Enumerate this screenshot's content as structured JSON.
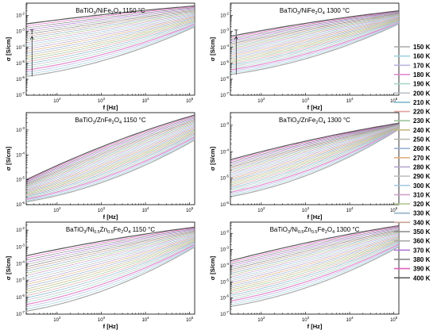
{
  "legend_title": "",
  "legend": [
    "150 K",
    "160 K",
    "170 K",
    "180 K",
    "190 K",
    "200 K",
    "210 K",
    "220 K",
    "230 K",
    "240 K",
    "250 K",
    "260 K",
    "270 K",
    "280 K",
    "290 K",
    "300 K",
    "310 K",
    "320 K",
    "330 K",
    "340 K",
    "350 K",
    "360 K",
    "370 K",
    "380 K",
    "390 K",
    "400 K"
  ],
  "legend_colors": [
    "#a9a9a9",
    "#9ed3e0",
    "#b9b4e0",
    "#e38ad0",
    "#a8d7c4",
    "#b6bec8",
    "#7fb8d0",
    "#e0a3a0",
    "#9ec4a0",
    "#c7b97d",
    "#b3b8a8",
    "#9ab0d4",
    "#e0b080",
    "#b8a8d0",
    "#c0c0c0",
    "#a0c8e0",
    "#d0a0c8",
    "#b0c890",
    "#90b0c8",
    "#c8a090",
    "#888888",
    "#a8a8a8",
    "#b07ad8",
    "#8a8a8a",
    "#e060c0",
    "#555555"
  ],
  "chart_data": [
    {
      "type": "line",
      "title": "BaTiO3/NiFe2O4 1150 °C",
      "title_parts": [
        "BaTiO",
        "3",
        "/NiFe",
        "2",
        "O",
        "4",
        " 1150 °C"
      ],
      "xlabel": "f [Hz]",
      "ylabel": "σ [S/cm]",
      "x_scale": "log",
      "y_scale": "log",
      "xlim": [
        20,
        130000
      ],
      "ylim": [
        1e-07,
        0.06
      ],
      "x_ticks": [
        2,
        3,
        4,
        5
      ],
      "y_ticks": [
        -7,
        -6,
        -5,
        -4,
        -3,
        -2
      ],
      "annotation": "T",
      "annotation_x": 27,
      "annotation_y_range": [
        1.5e-06,
        0.0005
      ],
      "temperatures_K": [
        150,
        400
      ],
      "start_values_S_cm": [
        1.5e-06,
        0.003
      ],
      "end_values_S_cm": [
        0.002,
        0.04
      ]
    },
    {
      "type": "line",
      "title": "BaTiO3/NiFe2O4 1300 °C",
      "title_parts": [
        "BaTiO",
        "3",
        "/NiFe",
        "2",
        "O",
        "4",
        " 1300 °C"
      ],
      "xlabel": "f [Hz]",
      "ylabel": "σ [S/cm]",
      "x_scale": "log",
      "y_scale": "log",
      "xlim": [
        20,
        130000
      ],
      "ylim": [
        1e-07,
        0.06
      ],
      "x_ticks": [
        2,
        3,
        4,
        5
      ],
      "y_ticks": [
        -7,
        -6,
        -5,
        -4,
        -3,
        -2
      ],
      "annotation": "T",
      "annotation_x": 27,
      "annotation_y_range": [
        2e-06,
        0.0005
      ],
      "temperatures_K": [
        150,
        400
      ],
      "start_values_S_cm": [
        2e-06,
        0.0005
      ],
      "end_values_S_cm": [
        0.003,
        0.02
      ]
    },
    {
      "type": "line",
      "title": "BaTiO3/ZnFe2O4 1150 °C",
      "title_parts": [
        "BaTiO",
        "3",
        "/ZnFe",
        "2",
        "O",
        "4",
        " 1150 °C"
      ],
      "xlabel": "f [Hz]",
      "ylabel": "σ [S/cm]",
      "x_scale": "log",
      "y_scale": "log",
      "xlim": [
        20,
        130000
      ],
      "ylim": [
        1e-06,
        0.005
      ],
      "x_ticks": [
        2,
        3,
        4,
        5
      ],
      "y_ticks": [
        -6,
        -5,
        -4,
        -3
      ],
      "temperatures_K": [
        150,
        400
      ],
      "start_values_S_cm": [
        1.3e-06,
        1e-05
      ],
      "end_values_S_cm": [
        0.0004,
        0.004
      ]
    },
    {
      "type": "line",
      "title": "BaTiO3/ZnFe2O4 1300 °C",
      "title_parts": [
        "BaTiO",
        "3",
        "/ZnFe",
        "2",
        "O",
        "4",
        " 1300 °C"
      ],
      "xlabel": "f [Hz]",
      "ylabel": "σ [S/cm]",
      "x_scale": "log",
      "y_scale": "log",
      "xlim": [
        20,
        130000
      ],
      "ylim": [
        1e-06,
        0.003
      ],
      "x_ticks": [
        2,
        3,
        4,
        5
      ],
      "y_ticks": [
        -6,
        -5,
        -4,
        -3
      ],
      "temperatures_K": [
        150,
        400
      ],
      "start_values_S_cm": [
        2e-06,
        5e-05
      ],
      "end_values_S_cm": [
        0.0007,
        0.0012
      ]
    },
    {
      "type": "line",
      "title": "BaTiO3/Ni0.5Zn0.5Fe2O4 1150 °C",
      "title_parts": [
        "BaTiO",
        "3",
        "/Ni",
        "0.5",
        "Zn",
        "0.5",
        "Fe",
        "2",
        "O",
        "4",
        " 1150 °C"
      ],
      "xlabel": "f [Hz]",
      "ylabel": "σ [S/cm]",
      "x_scale": "log",
      "y_scale": "log",
      "xlim": [
        20,
        130000
      ],
      "ylim": [
        1e-07,
        0.03
      ],
      "x_ticks": [
        2,
        3,
        4,
        5
      ],
      "y_ticks": [
        -7,
        -6,
        -5,
        -4,
        -3,
        -2
      ],
      "temperatures_K": [
        150,
        400
      ],
      "start_values_S_cm": [
        1.5e-07,
        0.0003
      ],
      "end_values_S_cm": [
        0.001,
        0.015
      ]
    },
    {
      "type": "line",
      "title": "BaTiO3/Ni0.5Zn0.5Fe2O4 1300 °C",
      "title_parts": [
        "BaTiO",
        "3",
        "/Ni",
        "0.5",
        "Zn",
        "0.5",
        "Fe",
        "2",
        "O",
        "4",
        " 1300 °C"
      ],
      "xlabel": "f [Hz]",
      "ylabel": "σ [S/cm]",
      "x_scale": "log",
      "y_scale": "log",
      "xlim": [
        20,
        130000
      ],
      "ylim": [
        1e-07,
        0.05
      ],
      "x_ticks": [
        2,
        3,
        4,
        5
      ],
      "y_ticks": [
        -7,
        -6,
        -5,
        -4,
        -3,
        -2
      ],
      "temperatures_K": [
        150,
        400
      ],
      "start_values_S_cm": [
        3e-07,
        0.0002
      ],
      "end_values_S_cm": [
        0.0015,
        0.03
      ]
    }
  ]
}
